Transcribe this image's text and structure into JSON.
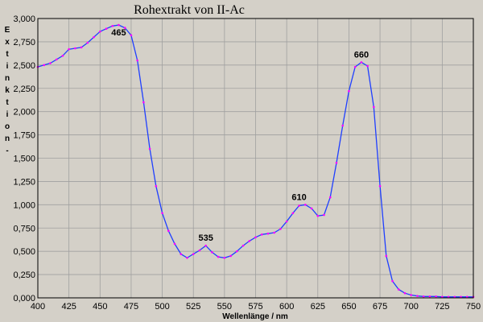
{
  "chart_data": {
    "type": "line",
    "title": "Rohextrakt von II-Ac",
    "xlabel": "Wellenlänge / nm",
    "ylabel": "Extinktion -",
    "xlim": [
      400,
      750
    ],
    "ylim": [
      0,
      3
    ],
    "x_ticks": [
      400,
      425,
      450,
      475,
      500,
      525,
      550,
      575,
      600,
      625,
      650,
      675,
      700,
      725,
      750
    ],
    "y_ticks": [
      "0,000",
      "0,250",
      "0,500",
      "0,750",
      "1,000",
      "1,250",
      "1,500",
      "1,750",
      "2,000",
      "2,250",
      "2,500",
      "2,750",
      "3,000"
    ],
    "grid": true,
    "colors": {
      "line": "#1f3fff",
      "marker": "#ff00ff",
      "grid": "#a0a0a0",
      "background": "#d4d0c8"
    },
    "series": [
      {
        "x": [
          400,
          405,
          410,
          415,
          420,
          425,
          430,
          435,
          440,
          445,
          450,
          455,
          460,
          465,
          470,
          475,
          480,
          485,
          490,
          495,
          500,
          505,
          510,
          515,
          520,
          525,
          530,
          535,
          540,
          545,
          550,
          555,
          560,
          565,
          570,
          575,
          580,
          585,
          590,
          595,
          600,
          605,
          610,
          615,
          620,
          625,
          630,
          635,
          640,
          645,
          650,
          655,
          660,
          665,
          670,
          675,
          680,
          685,
          690,
          695,
          700,
          705,
          710,
          715,
          720,
          725,
          730,
          735,
          740,
          745,
          750
        ],
        "y": [
          2.48,
          2.5,
          2.52,
          2.56,
          2.6,
          2.67,
          2.68,
          2.69,
          2.74,
          2.8,
          2.86,
          2.89,
          2.92,
          2.93,
          2.9,
          2.82,
          2.55,
          2.1,
          1.6,
          1.2,
          0.91,
          0.72,
          0.58,
          0.47,
          0.43,
          0.47,
          0.51,
          0.56,
          0.49,
          0.44,
          0.43,
          0.45,
          0.5,
          0.56,
          0.61,
          0.65,
          0.68,
          0.69,
          0.7,
          0.74,
          0.82,
          0.91,
          0.99,
          1.0,
          0.96,
          0.88,
          0.89,
          1.08,
          1.45,
          1.85,
          2.22,
          2.48,
          2.53,
          2.49,
          2.05,
          1.2,
          0.45,
          0.18,
          0.09,
          0.05,
          0.03,
          0.02,
          0.015,
          0.015,
          0.015,
          0.01,
          0.01,
          0.01,
          0.01,
          0.01,
          0.01
        ]
      }
    ],
    "annotations": [
      {
        "text": "465",
        "x": 465,
        "y": 2.93
      },
      {
        "text": "535",
        "x": 535,
        "y": 0.56
      },
      {
        "text": "610",
        "x": 610,
        "y": 1.0
      },
      {
        "text": "660",
        "x": 660,
        "y": 2.53
      }
    ]
  }
}
